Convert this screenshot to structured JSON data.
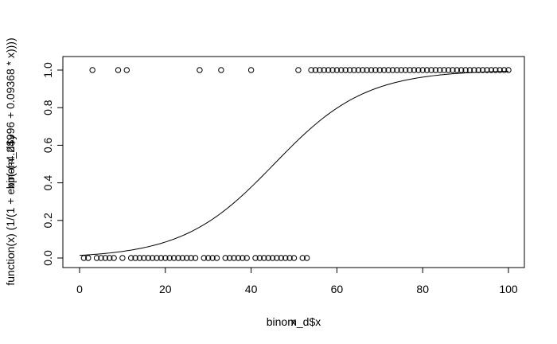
{
  "chart_data": {
    "type": "scatter",
    "xlabel": "binom_d$x",
    "ylabel": "function(x) (1/(1 + exp(-(-4.24996 + 0.09368 * x))))",
    "ylabel_overlay": "binom_d$y",
    "xlabel_overlay": "x",
    "xlim": [
      0,
      100
    ],
    "ylim": [
      0,
      1
    ],
    "grid": false,
    "x_ticks": [
      "0",
      "20",
      "40",
      "60",
      "80",
      "100"
    ],
    "y_ticks": [
      "0.0",
      "0.2",
      "0.4",
      "0.6",
      "0.8",
      "1.0"
    ],
    "series": [
      {
        "type": "scatter",
        "y0": [
          1,
          2,
          4,
          5,
          6,
          7,
          8,
          10,
          12,
          13,
          14,
          15,
          16,
          17,
          18,
          19,
          20,
          21,
          22,
          23,
          24,
          25,
          26,
          27,
          29,
          30,
          31,
          32,
          34,
          35,
          36,
          37,
          38,
          39,
          41,
          42,
          43,
          44,
          45,
          46,
          47,
          48,
          49,
          50,
          52,
          53
        ],
        "y1": [
          3,
          9,
          11,
          28,
          33,
          40,
          51,
          54,
          55,
          56,
          57,
          58,
          59,
          60,
          61,
          62,
          63,
          64,
          65,
          66,
          67,
          68,
          69,
          70,
          71,
          72,
          73,
          74,
          75,
          76,
          77,
          78,
          79,
          80,
          81,
          82,
          83,
          84,
          85,
          86,
          87,
          88,
          89,
          90,
          91,
          92,
          93,
          94,
          95,
          96,
          97,
          98,
          99,
          100
        ]
      },
      {
        "type": "line",
        "function": "logistic",
        "intercept": -4.24996,
        "slope": 0.09368,
        "x_range": [
          0,
          100
        ]
      }
    ]
  }
}
